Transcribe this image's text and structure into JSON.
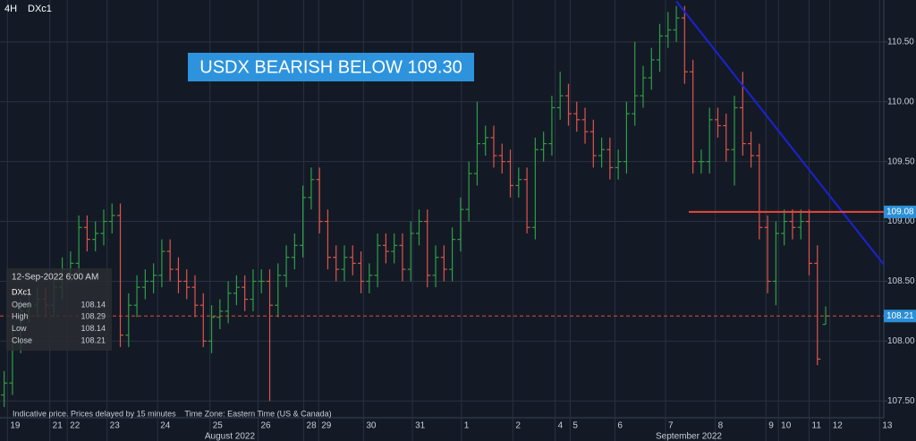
{
  "header": {
    "interval": "4H",
    "symbol": "DXc1"
  },
  "chart_data": {
    "type": "ohlc",
    "title": "USDX BEARISH BELOW 109.30",
    "up_color": "#2f9e44",
    "down_color": "#e0534a",
    "x": [
      0,
      1,
      2,
      3,
      4,
      5,
      6,
      7,
      8,
      9,
      10,
      11,
      12,
      13,
      14,
      15,
      16,
      17,
      18,
      19,
      20,
      21,
      22,
      23,
      24,
      25,
      26,
      27,
      28,
      29,
      30,
      31,
      32,
      33,
      34,
      35,
      36,
      37,
      38,
      39,
      40,
      41,
      42,
      43,
      44,
      45,
      46,
      47,
      48,
      49,
      50,
      51,
      52,
      53,
      54,
      55,
      56,
      57,
      58,
      59,
      60,
      61,
      62,
      63,
      64,
      65,
      66,
      67,
      68,
      69,
      70,
      71,
      72,
      73,
      74,
      75,
      76,
      77,
      78,
      79,
      80,
      81,
      82,
      83,
      84,
      85,
      86,
      87,
      88,
      89,
      90,
      91,
      92,
      93,
      94,
      95,
      96,
      97,
      98,
      99
    ],
    "open": [
      107.55,
      107.65,
      108.0,
      108.25,
      108.3,
      108.35,
      108.3,
      108.45,
      108.6,
      108.65,
      108.95,
      108.85,
      108.9,
      109.0,
      109.05,
      108.05,
      108.3,
      108.45,
      108.5,
      108.55,
      108.75,
      108.6,
      108.5,
      108.45,
      108.3,
      108.0,
      108.2,
      108.25,
      108.4,
      108.45,
      108.35,
      108.5,
      108.5,
      108.3,
      108.55,
      108.7,
      108.8,
      109.2,
      109.35,
      109.0,
      108.7,
      108.6,
      108.7,
      108.65,
      108.5,
      108.55,
      108.8,
      108.75,
      108.8,
      108.6,
      108.9,
      109.0,
      108.55,
      108.7,
      108.6,
      108.85,
      109.1,
      109.4,
      109.65,
      109.7,
      109.55,
      109.5,
      109.3,
      109.35,
      108.95,
      109.6,
      109.65,
      109.95,
      110.05,
      109.9,
      109.85,
      109.75,
      109.55,
      109.6,
      109.45,
      109.5,
      109.9,
      110.05,
      110.2,
      110.35,
      110.55,
      110.6,
      110.7,
      110.25,
      109.5,
      109.5,
      109.85,
      109.8,
      109.6,
      109.95,
      109.65,
      109.55,
      108.95,
      108.5,
      108.9,
      109.0,
      108.95,
      109.0,
      108.65,
      108.14
    ],
    "high": [
      107.75,
      108.1,
      108.35,
      108.4,
      108.45,
      108.45,
      108.55,
      108.7,
      108.75,
      109.05,
      109.05,
      109.0,
      109.1,
      109.15,
      109.15,
      108.4,
      108.55,
      108.6,
      108.65,
      108.85,
      108.85,
      108.7,
      108.6,
      108.55,
      108.4,
      108.3,
      108.35,
      108.5,
      108.55,
      108.55,
      108.6,
      108.6,
      108.6,
      108.65,
      108.8,
      108.9,
      109.3,
      109.45,
      109.45,
      109.1,
      108.8,
      108.8,
      108.8,
      108.75,
      108.65,
      108.9,
      108.9,
      108.9,
      108.9,
      109.0,
      109.1,
      109.1,
      108.8,
      108.8,
      108.95,
      109.2,
      109.5,
      110.0,
      109.8,
      109.8,
      109.65,
      109.6,
      109.45,
      109.45,
      109.7,
      109.75,
      110.05,
      110.25,
      110.15,
      110.0,
      109.95,
      109.85,
      109.7,
      109.7,
      109.6,
      110.0,
      110.5,
      110.3,
      110.45,
      110.65,
      110.75,
      110.8,
      110.8,
      110.35,
      109.6,
      109.95,
      109.95,
      109.9,
      110.05,
      110.25,
      109.75,
      109.65,
      109.05,
      109.0,
      109.1,
      109.1,
      109.1,
      109.1,
      108.8,
      108.29
    ],
    "low": [
      107.45,
      107.55,
      107.9,
      108.15,
      108.2,
      108.2,
      108.2,
      108.35,
      108.5,
      108.55,
      108.75,
      108.75,
      108.8,
      108.9,
      107.95,
      107.95,
      108.2,
      108.35,
      108.4,
      108.45,
      108.5,
      108.4,
      108.35,
      108.2,
      107.95,
      107.9,
      108.1,
      108.15,
      108.3,
      108.25,
      108.25,
      108.4,
      107.5,
      108.2,
      108.45,
      108.6,
      108.7,
      109.1,
      108.9,
      108.6,
      108.5,
      108.5,
      108.55,
      108.4,
      108.4,
      108.45,
      108.65,
      108.65,
      108.5,
      108.5,
      108.8,
      108.45,
      108.45,
      108.5,
      108.5,
      108.75,
      109.0,
      109.3,
      109.55,
      109.45,
      109.4,
      109.2,
      109.2,
      108.9,
      108.85,
      109.5,
      109.55,
      109.85,
      109.8,
      109.75,
      109.65,
      109.45,
      109.45,
      109.35,
      109.35,
      109.4,
      109.8,
      109.95,
      110.1,
      110.25,
      110.45,
      110.5,
      110.15,
      109.4,
      109.4,
      109.4,
      109.7,
      109.5,
      109.3,
      109.55,
      109.45,
      108.85,
      108.4,
      108.3,
      108.8,
      108.85,
      108.85,
      108.55,
      107.8,
      108.14
    ],
    "close": [
      107.65,
      108.0,
      108.25,
      108.3,
      108.35,
      108.3,
      108.45,
      108.6,
      108.65,
      108.95,
      108.85,
      108.9,
      109.0,
      109.05,
      108.05,
      108.3,
      108.45,
      108.5,
      108.55,
      108.75,
      108.6,
      108.5,
      108.45,
      108.3,
      108.0,
      108.2,
      108.25,
      108.4,
      108.45,
      108.35,
      108.5,
      108.5,
      108.3,
      108.55,
      108.7,
      108.8,
      109.2,
      109.35,
      109.0,
      108.7,
      108.6,
      108.7,
      108.65,
      108.5,
      108.55,
      108.8,
      108.75,
      108.8,
      108.6,
      108.9,
      109.0,
      108.55,
      108.7,
      108.6,
      108.85,
      109.1,
      109.4,
      109.65,
      109.7,
      109.55,
      109.5,
      109.3,
      109.35,
      108.95,
      109.6,
      109.65,
      109.95,
      110.05,
      109.9,
      109.85,
      109.75,
      109.55,
      109.6,
      109.45,
      109.5,
      109.9,
      110.05,
      110.2,
      110.35,
      110.55,
      110.6,
      110.7,
      110.25,
      109.5,
      109.5,
      109.85,
      109.8,
      109.6,
      109.95,
      109.65,
      109.55,
      108.95,
      108.5,
      108.9,
      109.0,
      108.95,
      109.0,
      108.65,
      107.85,
      108.21
    ],
    "xlim": [
      -0.5,
      106
    ],
    "xticks": [
      {
        "value": 0.4,
        "label": "19"
      },
      {
        "value": 5.5,
        "label": "21"
      },
      {
        "value": 7.6,
        "label": "22"
      },
      {
        "value": 12.4,
        "label": "23"
      },
      {
        "value": 18.5,
        "label": "24"
      },
      {
        "value": 24.8,
        "label": "25"
      },
      {
        "value": 30.6,
        "label": "26"
      },
      {
        "value": 36.1,
        "label": "28"
      },
      {
        "value": 37.9,
        "label": "29"
      },
      {
        "value": 43.3,
        "label": "30"
      },
      {
        "value": 49.2,
        "label": "31"
      },
      {
        "value": 55.1,
        "label": "1"
      },
      {
        "value": 61.3,
        "label": "2"
      },
      {
        "value": 66.4,
        "label": "4"
      },
      {
        "value": 68.2,
        "label": "5"
      },
      {
        "value": 73.6,
        "label": "6"
      },
      {
        "value": 79.7,
        "label": "7"
      },
      {
        "value": 85.7,
        "label": "8"
      },
      {
        "value": 91.8,
        "label": "9"
      },
      {
        "value": 93.3,
        "label": "10"
      },
      {
        "value": 97.0,
        "label": "11"
      },
      {
        "value": 99.5,
        "label": "12"
      },
      {
        "value": 105.5,
        "label": "13"
      }
    ],
    "months": [
      {
        "value": 27.2,
        "label": "August 2022"
      },
      {
        "value": 82.5,
        "label": "September 2022"
      }
    ],
    "ylim": [
      107.36,
      110.85
    ],
    "yticks": [
      {
        "value": 107.5,
        "label": "107.50"
      },
      {
        "value": 108,
        "label": "108.00"
      },
      {
        "value": 108.5,
        "label": "108.50"
      },
      {
        "value": 109,
        "label": "109.00"
      },
      {
        "value": 109.5,
        "label": "109.50"
      },
      {
        "value": 110,
        "label": "110.00"
      },
      {
        "value": 110.5,
        "label": "110.50"
      }
    ],
    "grid": true,
    "trendline": {
      "color": "#1a22d6",
      "x": [
        81.0,
        106
      ],
      "y": [
        110.84,
        108.64
      ]
    },
    "levels": [
      {
        "value": 109.08,
        "color": "#e8473c",
        "style": "solid",
        "x": 82.5
      },
      {
        "value": 108.21,
        "color": "#e8473c",
        "style": "dashed"
      }
    ],
    "tooltip": {
      "time": "12-Sep-2022 6:00 AM",
      "symbol": "DXc1",
      "rows": [
        {
          "label": "Open",
          "value": 108.14
        },
        {
          "label": "High",
          "value": 108.29
        },
        {
          "label": "Low",
          "value": 108.14
        },
        {
          "label": "Close",
          "value": 108.21
        }
      ]
    },
    "footer": "Indicative price. Prices delayed by 15 minutes    Time Zone: Eastern Time (US & Canada)"
  }
}
